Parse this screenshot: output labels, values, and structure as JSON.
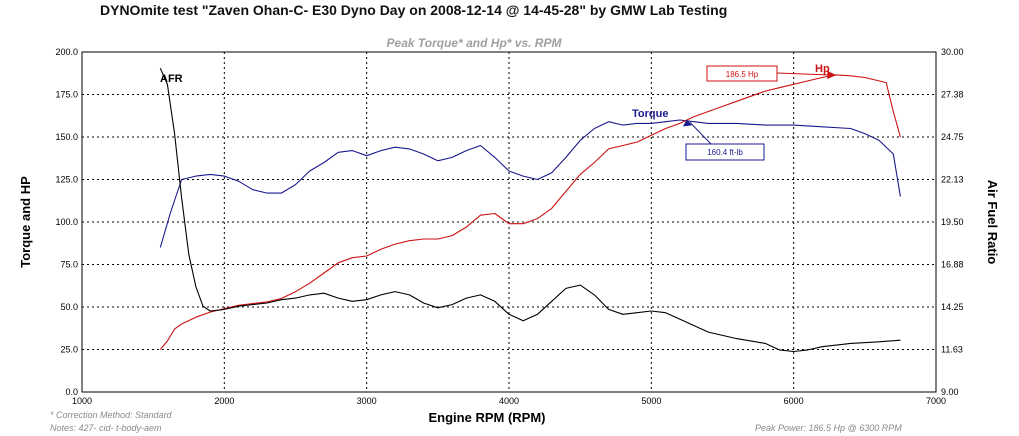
{
  "page_title": "DYNOmite test \"Zaven Ohan-C- E30 Dyno Day on 2008-12-14 @ 14-45-28\" by GMW Lab Testing",
  "footer": {
    "correction": "* Correction Method: Standard",
    "notes": "Notes: 427- cid- t-body-aem",
    "peak_power": "Peak Power: 186.5 Hp @ 6300 RPM"
  },
  "colors": {
    "torque": "#1a1a8c",
    "hp": "#cc1111",
    "afr": "#000000",
    "grid": "#000000",
    "title_gray": "#a0a0a0"
  },
  "chart_data": {
    "type": "line",
    "title": "Peak Torque* and Hp* vs. RPM",
    "xlabel": "Engine RPM (RPM)",
    "ylabel": "Torque and HP",
    "y2label": "Air Fuel Ratio",
    "xlim": [
      1000,
      7000
    ],
    "ylim": [
      0,
      200
    ],
    "y2lim": [
      9.0,
      30.0
    ],
    "x_ticks": [
      1000,
      2000,
      3000,
      4000,
      5000,
      6000,
      7000
    ],
    "y_ticks": [
      "0.0",
      "25.0",
      "50.0",
      "75.0",
      "100.0",
      "125.0",
      "150.0",
      "175.0",
      "200.0"
    ],
    "y2_ticks": [
      "9.00",
      "11.63",
      "14.25",
      "16.88",
      "19.50",
      "22.13",
      "24.75",
      "27.38",
      "30.00"
    ],
    "series": [
      {
        "name": "Torque",
        "axis": "left",
        "x": [
          1550,
          1620,
          1700,
          1800,
          1900,
          2000,
          2100,
          2200,
          2300,
          2400,
          2500,
          2600,
          2700,
          2800,
          2900,
          3000,
          3100,
          3200,
          3300,
          3400,
          3500,
          3600,
          3700,
          3800,
          3900,
          4000,
          4100,
          4200,
          4300,
          4400,
          4500,
          4600,
          4700,
          4800,
          4900,
          5000,
          5100,
          5200,
          5300,
          5400,
          5600,
          5800,
          6000,
          6200,
          6400,
          6500,
          6600,
          6700,
          6750
        ],
        "y": [
          85,
          105,
          125,
          127,
          128,
          127,
          124,
          119,
          117,
          117,
          122,
          130,
          135,
          141,
          142,
          139,
          142,
          144,
          143,
          140,
          136,
          138,
          142,
          145,
          138,
          130,
          127,
          125,
          129,
          138,
          148,
          155,
          159,
          157,
          158,
          158,
          159,
          160,
          159,
          158,
          158,
          157,
          157,
          156,
          155,
          152,
          148,
          140,
          115
        ]
      },
      {
        "name": "Hp",
        "axis": "left",
        "x": [
          1550,
          1600,
          1650,
          1700,
          1800,
          1900,
          2000,
          2100,
          2200,
          2300,
          2400,
          2500,
          2600,
          2700,
          2800,
          2900,
          3000,
          3100,
          3200,
          3300,
          3400,
          3500,
          3600,
          3700,
          3800,
          3900,
          4000,
          4100,
          4200,
          4300,
          4400,
          4500,
          4600,
          4700,
          4800,
          4900,
          5000,
          5100,
          5200,
          5300,
          5400,
          5500,
          5600,
          5700,
          5800,
          5900,
          6000,
          6100,
          6200,
          6300,
          6400,
          6500,
          6600,
          6650,
          6700,
          6750
        ],
        "y": [
          25,
          30,
          37,
          40,
          44,
          47,
          49,
          51,
          52,
          53,
          55,
          59,
          64,
          70,
          76,
          79,
          80,
          84,
          87,
          89,
          90,
          90,
          92,
          97,
          104,
          105,
          99,
          99,
          102,
          108,
          118,
          128,
          135,
          143,
          145,
          147,
          151,
          155,
          158,
          162,
          165,
          168,
          171,
          174,
          177,
          179,
          181,
          183,
          185,
          186.5,
          186,
          185,
          183,
          182,
          165,
          150
        ]
      },
      {
        "name": "AFR",
        "axis": "right",
        "x": [
          1550,
          1600,
          1650,
          1700,
          1750,
          1800,
          1850,
          1900,
          2000,
          2100,
          2200,
          2300,
          2400,
          2500,
          2600,
          2700,
          2800,
          2900,
          3000,
          3100,
          3200,
          3300,
          3400,
          3500,
          3600,
          3700,
          3800,
          3900,
          4000,
          4100,
          4200,
          4300,
          4400,
          4500,
          4600,
          4700,
          4800,
          4900,
          5000,
          5100,
          5200,
          5400,
          5600,
          5800,
          5900,
          6000,
          6100,
          6200,
          6400,
          6600,
          6750
        ],
        "y": [
          29.0,
          28.0,
          25.0,
          21.0,
          17.5,
          15.5,
          14.3,
          14.0,
          14.1,
          14.3,
          14.4,
          14.5,
          14.7,
          14.8,
          15.0,
          15.1,
          14.8,
          14.6,
          14.7,
          15.0,
          15.2,
          15.0,
          14.5,
          14.2,
          14.4,
          14.8,
          15.0,
          14.6,
          13.8,
          13.4,
          13.8,
          14.6,
          15.4,
          15.6,
          15.0,
          14.1,
          13.8,
          13.9,
          14.0,
          13.9,
          13.5,
          12.7,
          12.3,
          12.0,
          11.6,
          11.5,
          11.6,
          11.8,
          12.0,
          12.1,
          12.2
        ]
      }
    ],
    "annotations": {
      "afr_label": "AFR",
      "torque_label": "Torque",
      "hp_label": "Hp",
      "peak_hp": "186.5 Hp",
      "peak_torque": "160.4 ft-lb",
      "peak_hp_rpm": 6300,
      "peak_hp_value": 186.5,
      "peak_torque_rpm": 5250,
      "peak_torque_value": 160.4
    }
  }
}
